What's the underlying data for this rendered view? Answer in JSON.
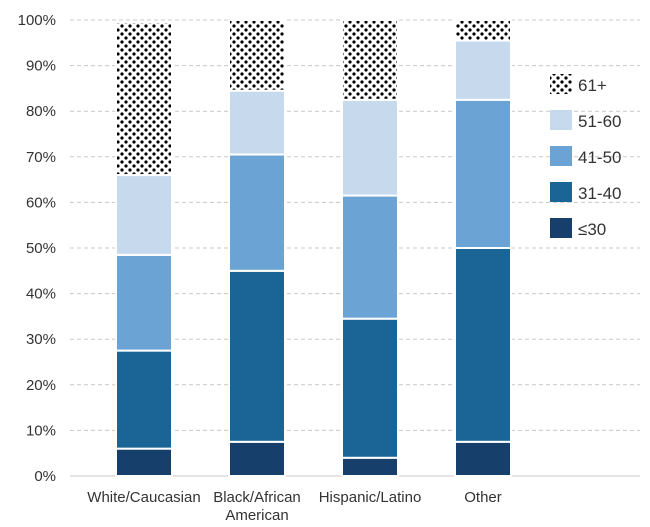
{
  "chart_data": {
    "type": "bar",
    "stacked": true,
    "orientation": "vertical",
    "categories": [
      "White/Caucasian",
      "Black/African American",
      "Hispanic/Latino",
      "Other"
    ],
    "series": [
      {
        "name": "≤30",
        "color": "#163f6b",
        "values": [
          6,
          7.5,
          4,
          7.5
        ]
      },
      {
        "name": "31-40",
        "color": "#1a6596",
        "values": [
          21.5,
          37.5,
          30.5,
          42.5
        ]
      },
      {
        "name": "41-50",
        "color": "#6aa3d4",
        "values": [
          21,
          25.5,
          27,
          32.5
        ]
      },
      {
        "name": "51-60",
        "color": "#c7d9ec",
        "values": [
          17.5,
          14,
          21,
          13
        ]
      },
      {
        "name": "61+",
        "pattern": "dots",
        "color": "#000000",
        "values": [
          33.5,
          15.5,
          17.5,
          4.5
        ]
      }
    ],
    "ylim": [
      0,
      100
    ],
    "yticks": [
      "0%",
      "10%",
      "20%",
      "30%",
      "40%",
      "50%",
      "60%",
      "70%",
      "80%",
      "90%",
      "100%"
    ],
    "grid": true,
    "legend": {
      "placement": "right",
      "order": [
        "61+",
        "51-60",
        "41-50",
        "31-40",
        "≤30"
      ]
    }
  }
}
